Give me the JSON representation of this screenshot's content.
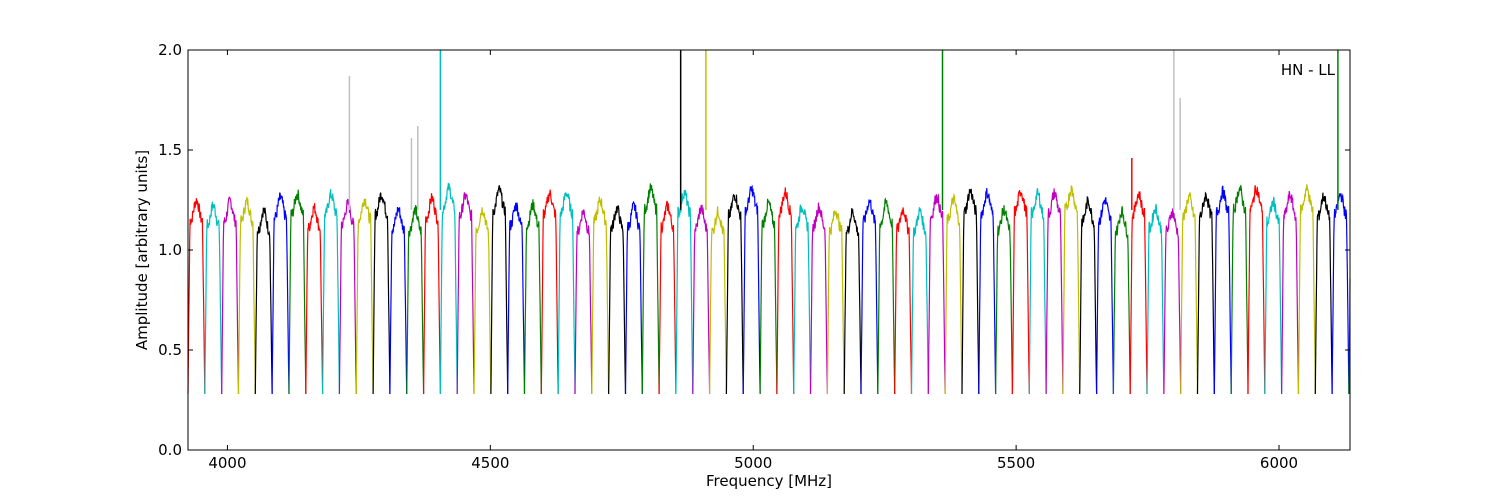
{
  "chart_data": {
    "type": "line",
    "title": "",
    "annotation": "HN - LL",
    "xlabel": "Frequency [MHz]",
    "ylabel": "Amplitude [arbitrary units]",
    "xlim": [
      3925,
      6135
    ],
    "ylim": [
      0.0,
      2.0
    ],
    "xticks": [
      4000,
      4500,
      5000,
      5500,
      6000
    ],
    "yticks": [
      0.0,
      0.5,
      1.0,
      1.5,
      2.0
    ],
    "ytick_labels": [
      "0.0",
      "0.5",
      "1.0",
      "1.5",
      "2.0"
    ],
    "grid": false,
    "legend": "none",
    "colors": {
      "palette": [
        "#ff0000",
        "#00bfbf",
        "#bf00bf",
        "#bfbf00",
        "#000000",
        "#0000ff",
        "#008000"
      ],
      "background_trace": "#c0c0c0"
    },
    "channel_spacing_mhz": 32,
    "first_channel_start_mhz": 3925,
    "channel_count": 70,
    "passband_level": 1.2,
    "channel_edge_minimum": 0.28,
    "spikes": [
      {
        "x": 4232,
        "y": 1.87,
        "color": "#c0c0c0"
      },
      {
        "x": 4350,
        "y": 1.56,
        "color": "#c0c0c0"
      },
      {
        "x": 4362,
        "y": 1.62,
        "color": "#c0c0c0"
      },
      {
        "x": 4405,
        "y": 2.0,
        "color": "#00bfbf"
      },
      {
        "x": 4862,
        "y": 2.0,
        "color": "#000000"
      },
      {
        "x": 4910,
        "y": 2.0,
        "color": "#bfbf00"
      },
      {
        "x": 5360,
        "y": 2.0,
        "color": "#008000"
      },
      {
        "x": 5720,
        "y": 1.46,
        "color": "#ff0000"
      },
      {
        "x": 5800,
        "y": 2.0,
        "color": "#c0c0c0"
      },
      {
        "x": 5812,
        "y": 1.76,
        "color": "#c0c0c0"
      },
      {
        "x": 6112,
        "y": 2.0,
        "color": "#008000"
      }
    ]
  }
}
